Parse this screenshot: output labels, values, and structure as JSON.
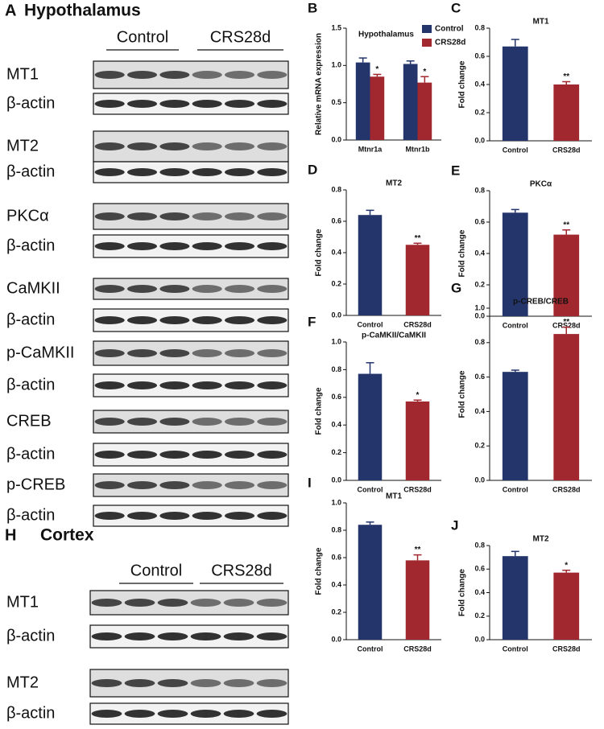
{
  "blots": [
    {
      "letter": "A",
      "title": "Hypothalamus",
      "groups": [
        "Control",
        "CRS28d"
      ],
      "rows": [
        "MT1",
        "β-actin",
        "MT2",
        "β-actin",
        "PKCα",
        "β-actin",
        "CaMKII",
        "β-actin",
        "p-CaMKII",
        "β-actin",
        "CREB",
        "β-actin",
        "p-CREB",
        "β-actin"
      ]
    },
    {
      "letter": "H",
      "title": "Cortex",
      "groups": [
        "Control",
        "CRS28d"
      ],
      "rows": [
        "MT1",
        "β-actin",
        "MT2",
        "β-actin"
      ]
    }
  ],
  "chart_data": [
    {
      "type": "grouped_bar",
      "letter": "B",
      "title": "Hypothalamus",
      "ylabel": "Relative mRNA expression",
      "categories": [
        "Mtnr1a",
        "Mtnr1b"
      ],
      "series": [
        {
          "name": "Control",
          "color": "#24356b",
          "values": [
            1.04,
            1.02
          ],
          "errors": [
            0.06,
            0.04
          ],
          "significance": [
            null,
            null
          ]
        },
        {
          "name": "CRS28d",
          "color": "#a1282e",
          "values": [
            0.85,
            0.77
          ],
          "errors": [
            0.03,
            0.08
          ],
          "significance": [
            "*",
            "*"
          ]
        }
      ],
      "ylim": [
        0,
        1.5
      ],
      "yticks": [
        {
          "value": 0,
          "label": "0.0"
        },
        0.5,
        {
          "value": 1,
          "label": "1.0"
        },
        1.5
      ]
    },
    {
      "type": "bar",
      "letter": "C",
      "title": "MT1",
      "ylabel": "Fold change",
      "categories": [
        "Control",
        "CRS28d"
      ],
      "values": [
        0.67,
        0.4
      ],
      "errors": [
        0.05,
        0.02
      ],
      "significance": [
        null,
        "**"
      ],
      "colors": [
        "#24356b",
        "#a1282e"
      ],
      "ylim": [
        0,
        0.8
      ],
      "yticks": [
        {
          "value": 0,
          "label": "0.0"
        },
        0.2,
        0.4,
        0.6,
        0.8
      ]
    },
    {
      "type": "bar",
      "letter": "D",
      "title": "MT2",
      "ylabel": "Fold change",
      "categories": [
        "Control",
        "CRS28d"
      ],
      "values": [
        0.64,
        0.45
      ],
      "errors": [
        0.03,
        0.01
      ],
      "significance": [
        null,
        "**"
      ],
      "colors": [
        "#24356b",
        "#a1282e"
      ],
      "ylim": [
        0,
        0.8
      ],
      "yticks": [
        {
          "value": 0,
          "label": "0.0"
        },
        0.2,
        0.4,
        0.6,
        0.8
      ]
    },
    {
      "type": "bar",
      "letter": "E",
      "title": "PKCα",
      "ylabel": "Fold change",
      "categories": [
        "Control",
        "CRS28d"
      ],
      "values": [
        0.66,
        0.52
      ],
      "errors": [
        0.02,
        0.03
      ],
      "significance": [
        null,
        "**"
      ],
      "colors": [
        "#24356b",
        "#a1282e"
      ],
      "ylim": [
        0,
        0.8
      ],
      "yticks": [
        {
          "value": 0,
          "label": "0.0"
        },
        0.2,
        0.4,
        0.6,
        0.8
      ]
    },
    {
      "type": "bar",
      "letter": "F",
      "title": "p-CaMKII/CaMKII",
      "ylabel": "Fold change",
      "categories": [
        "Control",
        "CRS28d"
      ],
      "values": [
        0.77,
        0.57
      ],
      "errors": [
        0.08,
        0.01
      ],
      "significance": [
        null,
        "*"
      ],
      "colors": [
        "#24356b",
        "#a1282e"
      ],
      "ylim": [
        0,
        1.0
      ],
      "yticks": [
        {
          "value": 0,
          "label": "0.0"
        },
        0.2,
        0.4,
        0.6,
        0.8,
        {
          "value": 1,
          "label": "1.0"
        }
      ]
    },
    {
      "type": "bar",
      "letter": "G",
      "title": "p-CREB/CREB",
      "ylabel": "Fold change",
      "categories": [
        "Control",
        "CRS28d"
      ],
      "values": [
        0.63,
        0.85
      ],
      "errors": [
        0.01,
        0.04
      ],
      "significance": [
        null,
        "**"
      ],
      "colors": [
        "#24356b",
        "#a1282e"
      ],
      "ylim": [
        0,
        1.0
      ],
      "yticks": [
        {
          "value": 0,
          "label": "0.0"
        },
        0.2,
        0.4,
        0.6,
        0.8,
        {
          "value": 1,
          "label": "1.0"
        }
      ]
    },
    {
      "type": "bar",
      "letter": "I",
      "title": "MT1",
      "ylabel": "Fold change",
      "categories": [
        "Control",
        "CRS28d"
      ],
      "values": [
        0.84,
        0.58
      ],
      "errors": [
        0.02,
        0.04
      ],
      "significance": [
        null,
        "**"
      ],
      "colors": [
        "#24356b",
        "#a1282e"
      ],
      "ylim": [
        0,
        1.0
      ],
      "yticks": [
        {
          "value": 0,
          "label": "0.0"
        },
        0.2,
        0.4,
        0.6,
        0.8,
        {
          "value": 1,
          "label": "1.0"
        }
      ]
    },
    {
      "type": "bar",
      "letter": "J",
      "title": "MT2",
      "ylabel": "Fold change",
      "categories": [
        "Control",
        "CRS28d"
      ],
      "values": [
        0.71,
        0.57
      ],
      "errors": [
        0.04,
        0.02
      ],
      "significance": [
        null,
        "*"
      ],
      "colors": [
        "#24356b",
        "#a1282e"
      ],
      "ylim": [
        0,
        0.8
      ],
      "yticks": [
        {
          "value": 0,
          "label": "0.0"
        },
        0.2,
        0.4,
        0.6,
        0.8
      ]
    }
  ]
}
